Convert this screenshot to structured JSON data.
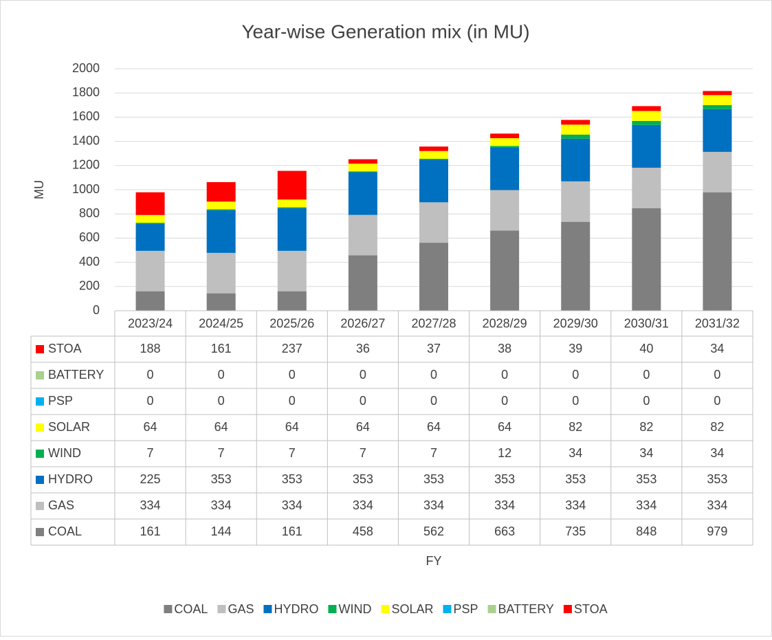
{
  "chart_data": {
    "type": "stacked_bar",
    "title": "Year-wise Generation mix (in MU)",
    "y_label": "MU",
    "x_label": "FY",
    "categories": [
      "2023/24",
      "2024/25",
      "2025/26",
      "2026/27",
      "2027/28",
      "2028/29",
      "2029/30",
      "2030/31",
      "2031/32"
    ],
    "series": [
      {
        "name": "COAL",
        "color": "#7f7f7f",
        "values": [
          161,
          144,
          161,
          458,
          562,
          663,
          735,
          848,
          979
        ]
      },
      {
        "name": "GAS",
        "color": "#bfbfbf",
        "values": [
          334,
          334,
          334,
          334,
          334,
          334,
          334,
          334,
          334
        ]
      },
      {
        "name": "HYDRO",
        "color": "#0070c0",
        "values": [
          225,
          353,
          353,
          353,
          353,
          353,
          353,
          353,
          353
        ]
      },
      {
        "name": "WIND",
        "color": "#00b050",
        "values": [
          7,
          7,
          7,
          7,
          7,
          12,
          34,
          34,
          34
        ]
      },
      {
        "name": "SOLAR",
        "color": "#ffff00",
        "values": [
          64,
          64,
          64,
          64,
          64,
          64,
          82,
          82,
          82
        ]
      },
      {
        "name": "PSP",
        "color": "#00b0f0",
        "values": [
          0,
          0,
          0,
          0,
          0,
          0,
          0,
          0,
          0
        ]
      },
      {
        "name": "BATTERY",
        "color": "#a9d18e",
        "values": [
          0,
          0,
          0,
          0,
          0,
          0,
          0,
          0,
          0
        ]
      },
      {
        "name": "STOA",
        "color": "#ff0000",
        "values": [
          188,
          161,
          237,
          36,
          37,
          38,
          39,
          40,
          34
        ]
      }
    ],
    "ylim": [
      0,
      2000
    ],
    "yticks": [
      0,
      200,
      400,
      600,
      800,
      1000,
      1200,
      1400,
      1600,
      1800,
      2000
    ],
    "grid": true,
    "legend": "bottom",
    "data_table": true
  }
}
